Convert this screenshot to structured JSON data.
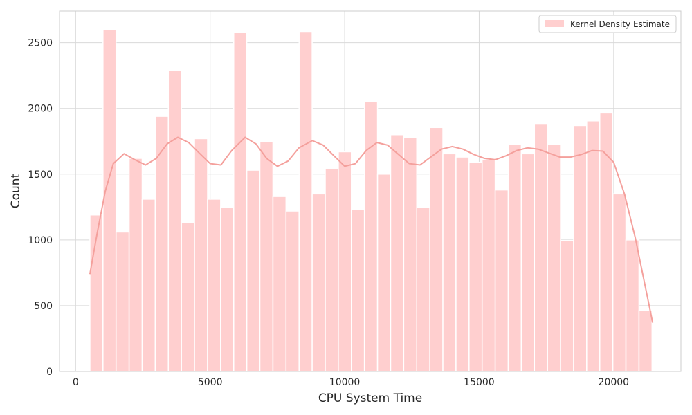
{
  "chart_data": {
    "type": "bar",
    "title": "",
    "xlabel": "CPU System Time",
    "ylabel": "Count",
    "xlim": [
      -600,
      22500
    ],
    "ylim": [
      0,
      2740
    ],
    "x_ticks": [
      0,
      5000,
      10000,
      15000,
      20000
    ],
    "y_ticks": [
      0,
      500,
      1000,
      1500,
      2000,
      2500
    ],
    "grid": true,
    "legend": {
      "placement": "top-right",
      "entries": [
        "Kernel Density Estimate"
      ]
    },
    "colors": {
      "bar": "#ffcfcf",
      "kde": "#f4a09c",
      "grid": "#d9d9d9",
      "axes": "#cccccc"
    },
    "bin_start": 530,
    "bin_width": 486,
    "values": [
      1190,
      2600,
      1060,
      1620,
      1310,
      1940,
      2290,
      1130,
      1770,
      1310,
      1250,
      2580,
      1530,
      1750,
      1330,
      1220,
      2585,
      1350,
      1545,
      1670,
      1230,
      2050,
      1500,
      1800,
      1780,
      1250,
      1855,
      1655,
      1630,
      1590,
      1610,
      1380,
      1725,
      1655,
      1880,
      1725,
      995,
      1870,
      1905,
      1965,
      1350,
      1000,
      465
    ],
    "kde": {
      "x": [
        530,
        800,
        1100,
        1400,
        1800,
        2200,
        2600,
        3000,
        3400,
        3800,
        4200,
        4600,
        5000,
        5400,
        5800,
        6300,
        6700,
        7100,
        7500,
        7900,
        8300,
        8800,
        9200,
        9600,
        10000,
        10400,
        10800,
        11200,
        11600,
        12000,
        12400,
        12800,
        13200,
        13600,
        14000,
        14400,
        14800,
        15200,
        15600,
        16000,
        16400,
        16800,
        17200,
        17600,
        18000,
        18400,
        18800,
        19200,
        19600,
        20000,
        20400,
        20800,
        21200,
        21450
      ],
      "y": [
        740,
        1050,
        1370,
        1580,
        1655,
        1610,
        1570,
        1620,
        1730,
        1780,
        1740,
        1660,
        1580,
        1570,
        1680,
        1780,
        1730,
        1620,
        1560,
        1600,
        1700,
        1755,
        1720,
        1640,
        1560,
        1580,
        1680,
        1740,
        1720,
        1650,
        1580,
        1570,
        1630,
        1690,
        1710,
        1690,
        1650,
        1620,
        1610,
        1640,
        1680,
        1700,
        1690,
        1660,
        1630,
        1630,
        1650,
        1680,
        1675,
        1590,
        1350,
        1020,
        620,
        370
      ]
    }
  }
}
